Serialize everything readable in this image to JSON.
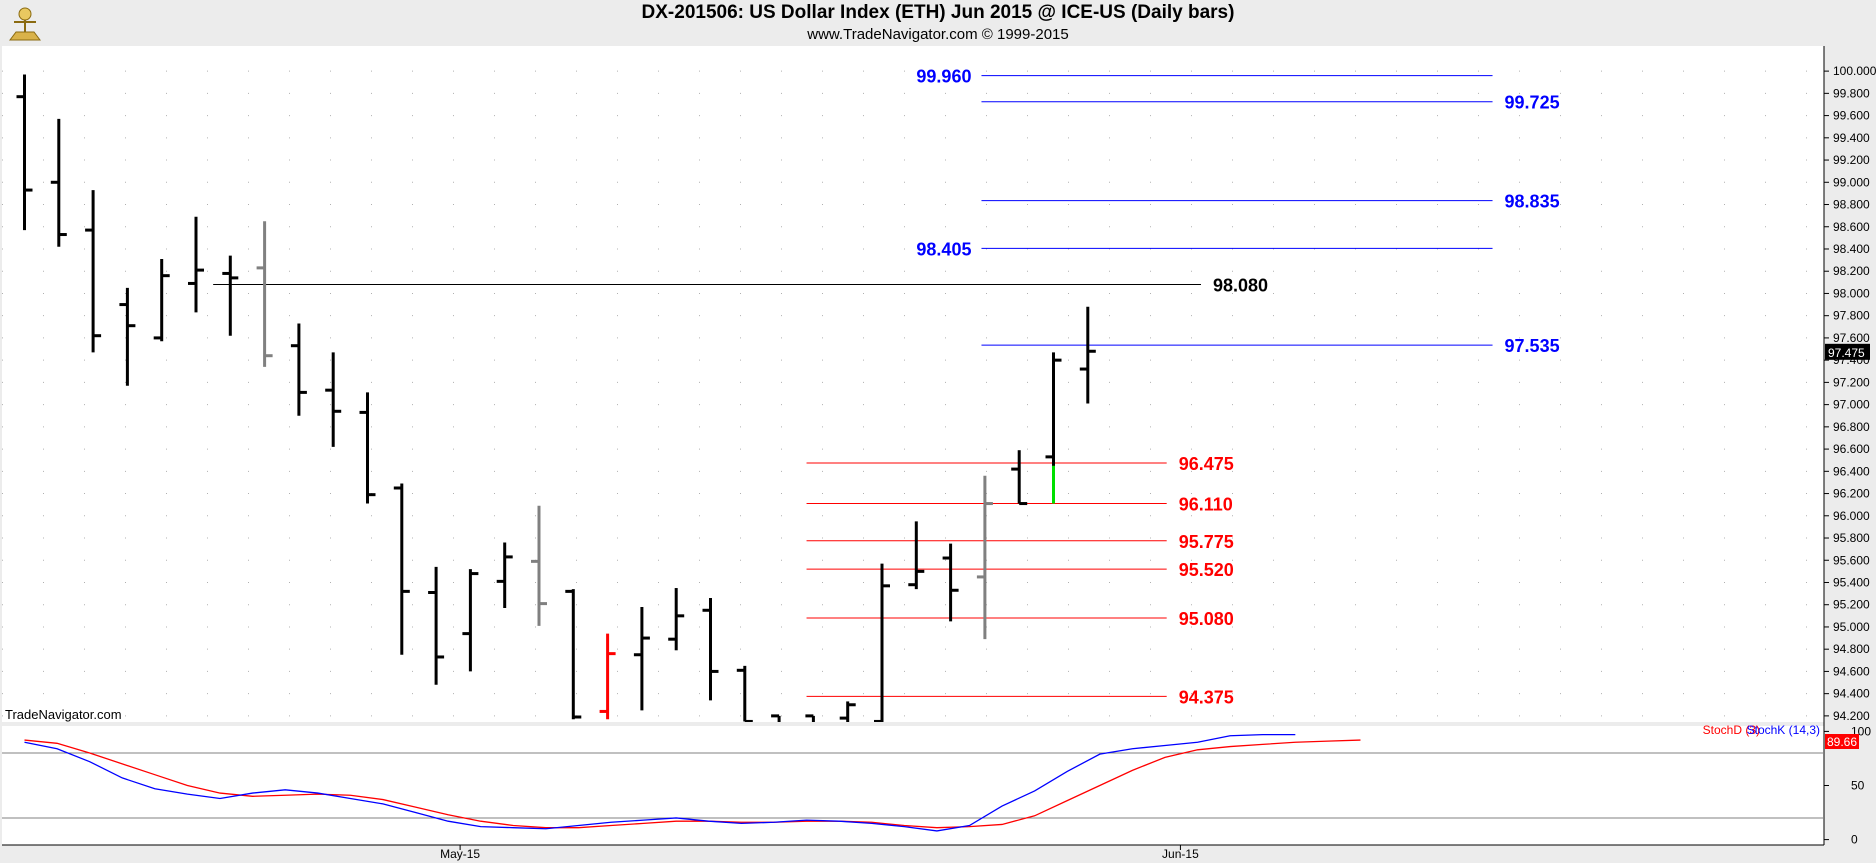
{
  "header": {
    "title": "DX-201506:  US Dollar Index (ETH) Jun 2015 @ ICE-US  (Daily bars)",
    "subtitle": "www.TradeNavigator.com © 1999-2015"
  },
  "watermark": "TradeNavigator.com",
  "colors": {
    "bar": "#000000",
    "gray": "#808080",
    "red": "#ff0000",
    "green": "#00e000",
    "blue": "#0000ff",
    "stochD": "#ff0000",
    "stochK": "#0000ff"
  },
  "chart_data": [
    {
      "type": "ohlc-bar",
      "ylim": [
        94.1,
        100.1
      ],
      "y_ticks": [
        "100.000",
        "99.800",
        "99.600",
        "99.400",
        "99.200",
        "99.000",
        "98.800",
        "98.600",
        "98.400",
        "98.200",
        "98.000",
        "97.800",
        "97.600",
        "97.400",
        "97.200",
        "97.000",
        "96.800",
        "96.600",
        "96.400",
        "96.200",
        "96.000",
        "95.800",
        "95.600",
        "95.400",
        "95.200",
        "95.000",
        "94.800",
        "94.600",
        "94.400",
        "94.200"
      ],
      "x_labels": [
        {
          "label": "May-15",
          "index": 12.7
        },
        {
          "label": "Jun-15",
          "index": 33.7
        }
      ],
      "last_price": "97.475",
      "bars": [
        {
          "o": 99.77,
          "h": 99.97,
          "l": 98.57,
          "c": 98.93,
          "color": "black"
        },
        {
          "o": 99.0,
          "h": 99.57,
          "l": 98.42,
          "c": 98.53,
          "color": "black"
        },
        {
          "o": 98.57,
          "h": 98.93,
          "l": 97.47,
          "c": 97.62,
          "color": "black"
        },
        {
          "o": 97.9,
          "h": 98.05,
          "l": 97.17,
          "c": 97.71,
          "color": "black"
        },
        {
          "o": 97.6,
          "h": 98.31,
          "l": 97.57,
          "c": 98.16,
          "color": "black"
        },
        {
          "o": 98.09,
          "h": 98.69,
          "l": 97.83,
          "c": 98.21,
          "color": "black"
        },
        {
          "o": 98.18,
          "h": 98.34,
          "l": 97.62,
          "c": 98.14,
          "color": "black"
        },
        {
          "o": 98.23,
          "h": 98.65,
          "l": 97.34,
          "c": 97.44,
          "color": "gray"
        },
        {
          "o": 97.53,
          "h": 97.73,
          "l": 96.9,
          "c": 97.11,
          "color": "black"
        },
        {
          "o": 97.13,
          "h": 97.47,
          "l": 96.62,
          "c": 96.94,
          "color": "black"
        },
        {
          "o": 96.93,
          "h": 97.11,
          "l": 96.11,
          "c": 96.19,
          "color": "black"
        },
        {
          "o": 96.25,
          "h": 96.29,
          "l": 94.75,
          "c": 95.32,
          "color": "black"
        },
        {
          "o": 95.31,
          "h": 95.54,
          "l": 94.48,
          "c": 94.73,
          "color": "black"
        },
        {
          "o": 94.94,
          "h": 95.52,
          "l": 94.6,
          "c": 95.48,
          "color": "black"
        },
        {
          "o": 95.41,
          "h": 95.76,
          "l": 95.17,
          "c": 95.63,
          "color": "black"
        },
        {
          "o": 95.59,
          "h": 96.09,
          "l": 95.01,
          "c": 95.21,
          "color": "gray"
        },
        {
          "o": 95.32,
          "h": 95.34,
          "l": 94.17,
          "c": 94.19,
          "color": "black"
        },
        {
          "o": 94.24,
          "h": 94.94,
          "l": 94.17,
          "c": 94.76,
          "color": "red"
        },
        {
          "o": 94.75,
          "h": 95.18,
          "l": 94.25,
          "c": 94.9,
          "color": "black"
        },
        {
          "o": 94.89,
          "h": 95.35,
          "l": 94.79,
          "c": 95.1,
          "color": "black"
        },
        {
          "o": 95.15,
          "h": 95.26,
          "l": 94.34,
          "c": 94.6,
          "color": "black"
        },
        {
          "o": 94.61,
          "h": 94.65,
          "l": 94.15,
          "c": 94.15,
          "color": "black"
        },
        {
          "o": 94.2,
          "h": 94.2,
          "l": 94.1,
          "c": 94.1,
          "color": "black"
        },
        {
          "o": 94.2,
          "h": 94.2,
          "l": 94.1,
          "c": 94.1,
          "color": "black"
        },
        {
          "o": 94.18,
          "h": 94.33,
          "l": 94.1,
          "c": 94.3,
          "color": "black"
        },
        {
          "o": 94.15,
          "h": 95.57,
          "l": 94.12,
          "c": 95.37,
          "color": "black"
        },
        {
          "o": 95.38,
          "h": 95.95,
          "l": 95.34,
          "c": 95.5,
          "color": "black"
        },
        {
          "o": 95.62,
          "h": 95.75,
          "l": 95.05,
          "c": 95.33,
          "color": "black"
        },
        {
          "o": 95.45,
          "h": 96.36,
          "l": 94.89,
          "c": 96.11,
          "color": "gray"
        },
        {
          "o": 96.42,
          "h": 96.59,
          "l": 96.11,
          "c": 96.11,
          "color": "black"
        },
        {
          "o": 96.53,
          "h": 97.47,
          "l": 96.11,
          "c": 97.4,
          "color": "black",
          "low_segment_color": "green",
          "low_segment_from": 96.45
        },
        {
          "o": 97.32,
          "h": 97.88,
          "l": 97.01,
          "c": 97.48,
          "color": "black"
        }
      ]
    },
    {
      "type": "horizontal-levels",
      "levels": [
        {
          "value": 99.96,
          "label": "99.960",
          "color": "blue",
          "from_index": 27.9,
          "to_index": 42.8,
          "label_side": "left"
        },
        {
          "value": 99.725,
          "label": "99.725",
          "color": "blue",
          "from_index": 27.9,
          "to_index": 42.8,
          "label_side": "right"
        },
        {
          "value": 98.835,
          "label": "98.835",
          "color": "blue",
          "from_index": 27.9,
          "to_index": 42.8,
          "label_side": "right"
        },
        {
          "value": 98.405,
          "label": "98.405",
          "color": "blue",
          "from_index": 27.9,
          "to_index": 42.8,
          "label_side": "left"
        },
        {
          "value": 98.08,
          "label": "98.080",
          "color": "black",
          "from_index": 5.5,
          "to_index": 34.3,
          "label_side": "right"
        },
        {
          "value": 97.535,
          "label": "97.535",
          "color": "blue",
          "from_index": 27.9,
          "to_index": 42.8,
          "label_side": "right"
        },
        {
          "value": 96.475,
          "label": "96.475",
          "color": "red",
          "from_index": 22.8,
          "to_index": 33.3,
          "label_side": "right"
        },
        {
          "value": 96.11,
          "label": "96.110",
          "color": "red",
          "from_index": 22.8,
          "to_index": 33.3,
          "label_side": "right"
        },
        {
          "value": 95.775,
          "label": "95.775",
          "color": "red",
          "from_index": 22.8,
          "to_index": 33.3,
          "label_side": "right"
        },
        {
          "value": 95.52,
          "label": "95.520",
          "color": "red",
          "from_index": 22.8,
          "to_index": 33.3,
          "label_side": "right"
        },
        {
          "value": 95.08,
          "label": "95.080",
          "color": "red",
          "from_index": 22.8,
          "to_index": 33.3,
          "label_side": "right"
        },
        {
          "value": 94.375,
          "label": "94.375",
          "color": "red",
          "from_index": 22.8,
          "to_index": 33.3,
          "label_side": "right"
        }
      ]
    },
    {
      "type": "line",
      "ylim": [
        -5,
        105
      ],
      "y_ticks": [
        "100",
        "50",
        "0"
      ],
      "reference_lines": [
        80,
        20
      ],
      "legend": [
        "StochD (3)",
        "StochK (14,3)"
      ],
      "last_value": "89.66",
      "series": [
        {
          "name": "StochD (3)",
          "color": "red",
          "values": [
            92,
            89,
            80,
            70,
            60,
            50,
            43,
            40,
            41,
            42,
            41,
            37,
            30,
            23,
            17,
            13,
            11,
            11,
            13,
            15,
            17,
            17,
            16,
            16,
            17,
            17,
            16,
            13,
            11,
            12,
            14,
            22,
            36,
            50,
            64,
            76,
            83,
            86,
            88,
            90,
            91,
            92
          ]
        },
        {
          "name": "StochK (14,3)",
          "color": "blue",
          "values": [
            90,
            84,
            72,
            57,
            47,
            42,
            38,
            43,
            46,
            43,
            38,
            33,
            25,
            17,
            12,
            11,
            10,
            13,
            16,
            18,
            20,
            17,
            15,
            16,
            18,
            17,
            15,
            12,
            8,
            13,
            31,
            45,
            63,
            79,
            84,
            87,
            90,
            96,
            97,
            97
          ]
        }
      ]
    }
  ]
}
